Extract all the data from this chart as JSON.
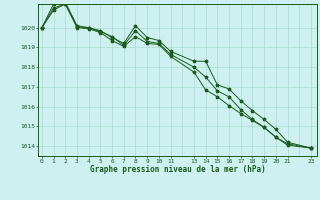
{
  "title": "Graphe pression niveau de la mer (hPa)",
  "background_color": "#cff0f0",
  "grid_color": "#aaddcc",
  "line_color": "#1a5c1a",
  "ylim": [
    1013.5,
    1021.2
  ],
  "yticks": [
    1014,
    1015,
    1016,
    1017,
    1018,
    1019,
    1020
  ],
  "x_ticks": [
    0,
    1,
    2,
    3,
    4,
    5,
    6,
    7,
    8,
    9,
    10,
    11,
    13,
    14,
    15,
    16,
    17,
    18,
    19,
    20,
    21,
    23
  ],
  "x_tick_labels": [
    "0",
    "1",
    "2",
    "3",
    "4",
    "5",
    "6",
    "7",
    "8",
    "9",
    "10",
    "11",
    "13",
    "14",
    "15",
    "16",
    "17",
    "18",
    "19",
    "20",
    "21",
    "23"
  ],
  "series1": [
    1020.0,
    1021.2,
    1021.3,
    1020.1,
    1020.0,
    1019.85,
    1019.5,
    1019.2,
    1020.1,
    1019.5,
    1019.35,
    1018.8,
    1018.3,
    1018.3,
    1017.1,
    1016.9,
    1016.3,
    1015.8,
    1015.35,
    1014.85,
    1014.2,
    1013.9
  ],
  "series2": [
    1020.0,
    1020.9,
    1021.2,
    1020.0,
    1019.95,
    1019.75,
    1019.35,
    1019.05,
    1019.55,
    1019.2,
    1019.15,
    1018.55,
    1017.75,
    1016.85,
    1016.5,
    1016.05,
    1015.65,
    1015.3,
    1014.95,
    1014.45,
    1014.05,
    1013.9
  ],
  "series3": [
    1020.0,
    1021.0,
    1021.2,
    1020.05,
    1020.0,
    1019.8,
    1019.55,
    1019.1,
    1019.85,
    1019.3,
    1019.2,
    1018.65,
    1018.0,
    1017.5,
    1016.8,
    1016.5,
    1015.85,
    1015.35,
    1014.95,
    1014.45,
    1014.12,
    1013.9
  ]
}
